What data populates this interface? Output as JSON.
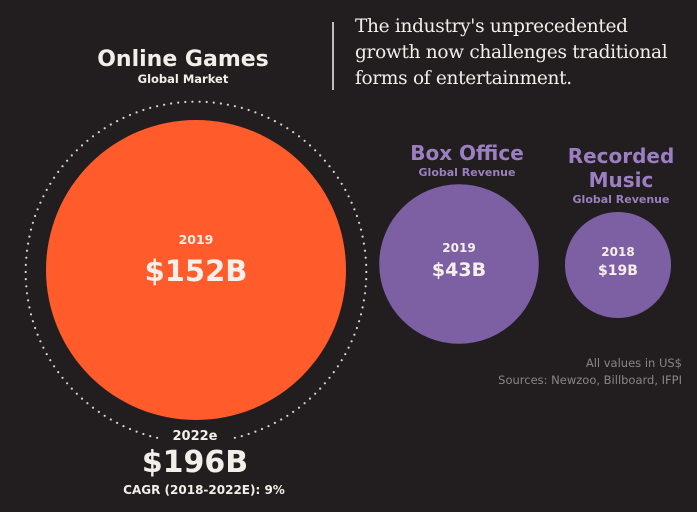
{
  "headline": "The industry's unprecedented growth now challenges traditional forms of entertainment.",
  "colors": {
    "background": "#221e1f",
    "games": "#ff5b2b",
    "purple": "#7d5fa3",
    "purple_label": "#9b7fc0",
    "text_light": "#f2efe9",
    "source_text": "#8a8486",
    "ring": "#d8d4d0"
  },
  "footnote": {
    "line1": "All values in US$",
    "line2": "Sources: Newzoo, Billboard, IFPI"
  },
  "chart_data": {
    "type": "bubble",
    "title": "The industry's unprecedented growth now challenges traditional forms of entertainment.",
    "unit": "US$ billions",
    "items": [
      {
        "key": "games",
        "title": "Online Games",
        "subtitle": "Global Market",
        "year": "2019",
        "value": 152,
        "label": "$152B",
        "projection": {
          "year": "2022e",
          "value": 196,
          "label": "$196B",
          "cagr_label": "CAGR (2018-2022E): 9%"
        }
      },
      {
        "key": "box_office",
        "title": "Box Office",
        "subtitle": "Global Revenue",
        "year": "2019",
        "value": 43,
        "label": "$43B"
      },
      {
        "key": "music",
        "title_lines": [
          "Recorded",
          "Music"
        ],
        "subtitle": "Global Revenue",
        "year": "2018",
        "value": 19,
        "label": "$19B"
      }
    ]
  }
}
